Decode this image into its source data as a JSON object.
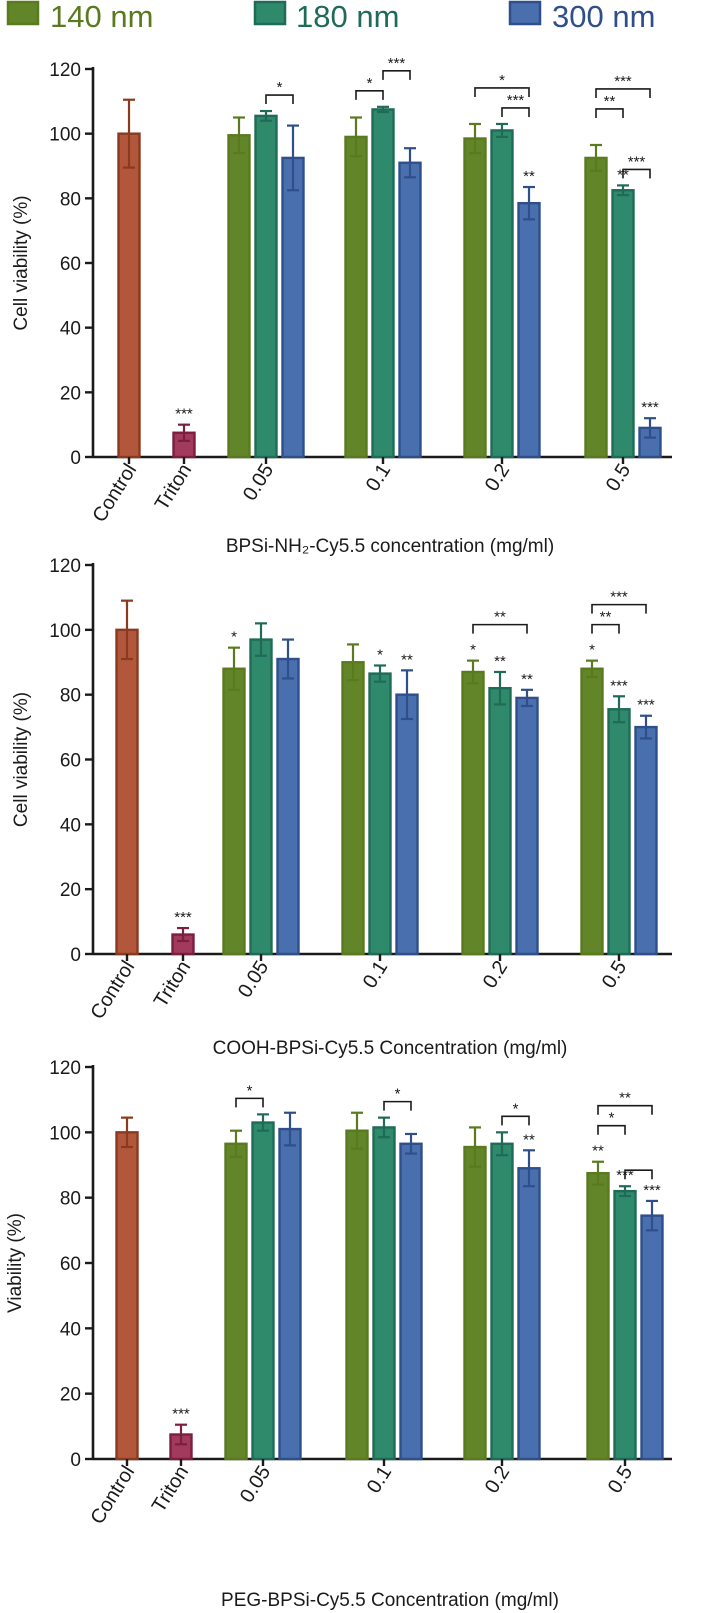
{
  "legend": [
    {
      "label": "140 nm",
      "color": "#5b7a1f",
      "fill": "#62852a"
    },
    {
      "label": "180 nm",
      "color": "#1f6b58",
      "fill": "#2f8a6b"
    },
    {
      "label": "300 nm",
      "color": "#2f4f8a",
      "fill": "#4a6fae"
    }
  ],
  "colors": {
    "control_fill": "#b2573c",
    "control_edge": "#8a3a1e",
    "triton_fill": "#a23a5e",
    "triton_edge": "#7a1f3e"
  },
  "chart_data": [
    {
      "type": "bar",
      "ylabel": "Cell viability (%)",
      "xlabel": "BPSi-NH₂-Cy5.5 concentration (mg/ml)",
      "ylim": [
        0,
        120
      ],
      "yticks": [
        "0",
        "20",
        "40",
        "60",
        "80",
        "100",
        "120"
      ],
      "control": {
        "label": "Control",
        "value": 100,
        "err": 10.5,
        "sig": ""
      },
      "triton": {
        "label": "Triton",
        "value": 7.5,
        "err": 2.5,
        "sig": "***"
      },
      "categories": [
        "0.05",
        "0.1",
        "0.2",
        "0.5"
      ],
      "series": [
        {
          "name": "140 nm",
          "values": [
            99.5,
            99,
            98.5,
            92.5
          ],
          "errors": [
            5.5,
            6,
            4.5,
            4
          ],
          "sig": [
            "",
            "",
            "",
            ""
          ]
        },
        {
          "name": "180 nm",
          "values": [
            105.5,
            107.5,
            101,
            82.5
          ],
          "errors": [
            1.5,
            0.8,
            2,
            1.5
          ],
          "sig": [
            "",
            "",
            "",
            "**"
          ]
        },
        {
          "name": "300 nm",
          "values": [
            92.5,
            91,
            78.5,
            9
          ],
          "errors": [
            10,
            4.5,
            5,
            3
          ],
          "sig": [
            "",
            "",
            "**",
            "***"
          ]
        }
      ],
      "comparisons": [
        {
          "group": 0,
          "from": 1,
          "to": 2,
          "label": "*",
          "level": 0
        },
        {
          "group": 1,
          "from": 0,
          "to": 1,
          "label": "*",
          "level": 0
        },
        {
          "group": 1,
          "from": 1,
          "to": 2,
          "label": "***",
          "level": 1
        },
        {
          "group": 2,
          "from": 0,
          "to": 2,
          "label": "*",
          "level": 1
        },
        {
          "group": 2,
          "from": 1,
          "to": 2,
          "label": "***",
          "level": 0
        },
        {
          "group": 3,
          "from": 0,
          "to": 2,
          "label": "***",
          "level": 2
        },
        {
          "group": 3,
          "from": 0,
          "to": 1,
          "label": "**",
          "level": 1
        },
        {
          "group": 3,
          "from": 1,
          "to": 2,
          "label": "***",
          "level": 0
        }
      ]
    },
    {
      "type": "bar",
      "ylabel": "Cell viability (%)",
      "xlabel": "COOH-BPSi-Cy5.5 Concentration (mg/ml)",
      "ylim": [
        0,
        120
      ],
      "yticks": [
        "0",
        "20",
        "40",
        "60",
        "80",
        "100",
        "120"
      ],
      "control": {
        "label": "Control",
        "value": 100,
        "err": 9,
        "sig": ""
      },
      "triton": {
        "label": "Triton",
        "value": 6,
        "err": 2,
        "sig": "***"
      },
      "categories": [
        "0.05",
        "0.1",
        "0.2",
        "0.5"
      ],
      "series": [
        {
          "name": "140 nm",
          "values": [
            88,
            90,
            87,
            88
          ],
          "errors": [
            6.5,
            5.5,
            3.5,
            2.5
          ],
          "sig": [
            "*",
            "",
            "*",
            "*"
          ]
        },
        {
          "name": "180 nm",
          "values": [
            97,
            86.5,
            82,
            75.5
          ],
          "errors": [
            5,
            2.5,
            5,
            4
          ],
          "sig": [
            "",
            "*",
            "**",
            "***"
          ]
        },
        {
          "name": "300 nm",
          "values": [
            91,
            80,
            79,
            70
          ],
          "errors": [
            6,
            7.5,
            2.5,
            3.5
          ],
          "sig": [
            "",
            "**",
            "**",
            "***"
          ]
        }
      ],
      "comparisons": [
        {
          "group": 2,
          "from": 0,
          "to": 2,
          "label": "**",
          "level": 1
        },
        {
          "group": 3,
          "from": 0,
          "to": 1,
          "label": "**",
          "level": 1
        },
        {
          "group": 3,
          "from": 0,
          "to": 2,
          "label": "***",
          "level": 2
        }
      ]
    },
    {
      "type": "bar",
      "ylabel": "Viability (%)",
      "xlabel": "PEG-BPSi-Cy5.5 Concentration (mg/ml)",
      "ylim": [
        0,
        120
      ],
      "yticks": [
        "0",
        "20",
        "40",
        "60",
        "80",
        "100",
        "120"
      ],
      "control": {
        "label": "Control",
        "value": 100,
        "err": 4.5,
        "sig": ""
      },
      "triton": {
        "label": "Triton",
        "value": 7.5,
        "err": 3,
        "sig": "***"
      },
      "categories": [
        "0.05",
        "0.1",
        "0.2",
        "0.5"
      ],
      "series": [
        {
          "name": "140 nm",
          "values": [
            96.5,
            100.5,
            95.5,
            87.5
          ],
          "errors": [
            4,
            5.5,
            6,
            3.5
          ],
          "sig": [
            "",
            "",
            "",
            "**"
          ]
        },
        {
          "name": "180 nm",
          "values": [
            103,
            101.5,
            96.5,
            82
          ],
          "errors": [
            2.5,
            3,
            3.5,
            1.5
          ],
          "sig": [
            "",
            "",
            "",
            "***"
          ]
        },
        {
          "name": "300 nm",
          "values": [
            101,
            96.5,
            89,
            74.5
          ],
          "errors": [
            5,
            3,
            5.5,
            4.5
          ],
          "sig": [
            "",
            "",
            "**",
            "***"
          ]
        }
      ],
      "comparisons": [
        {
          "group": 0,
          "from": 0,
          "to": 1,
          "label": "*",
          "level": 0
        },
        {
          "group": 1,
          "from": 1,
          "to": 2,
          "label": "*",
          "level": 0
        },
        {
          "group": 2,
          "from": 1,
          "to": 2,
          "label": "*",
          "level": 0
        },
        {
          "group": 3,
          "from": 0,
          "to": 1,
          "label": "*",
          "level": 1
        },
        {
          "group": 3,
          "from": 0,
          "to": 2,
          "label": "**",
          "level": 2
        },
        {
          "group": 3,
          "from": 1,
          "to": 2,
          "label": "",
          "level": 0
        }
      ]
    }
  ]
}
